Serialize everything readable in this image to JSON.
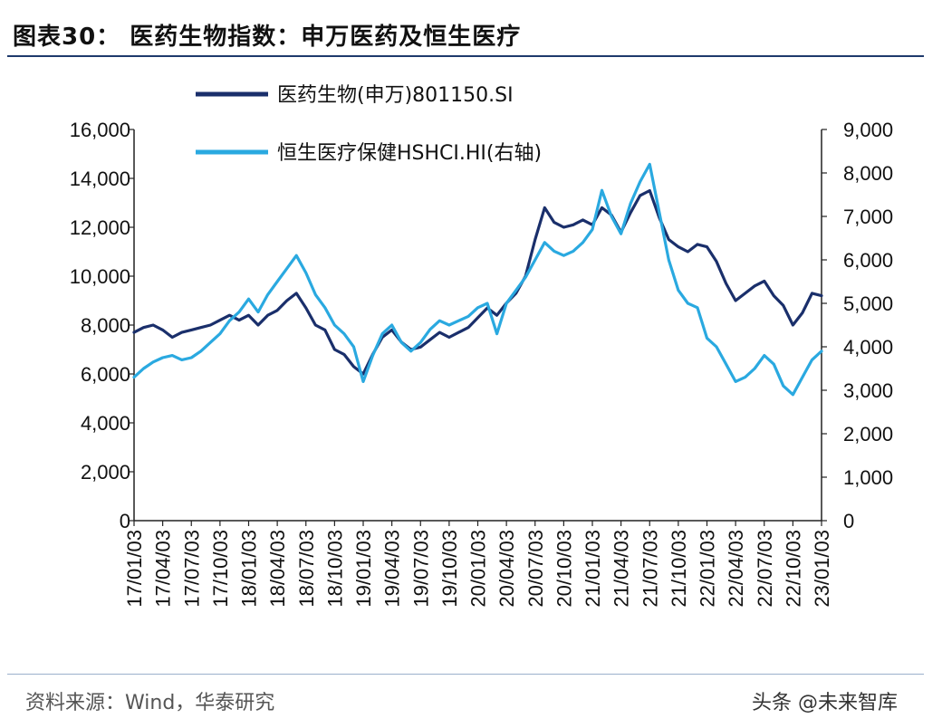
{
  "title": "图表30： 医药生物指数：申万医药及恒生医疗",
  "source": "资料来源：Wind，华泰研究",
  "watermark": "头条 @未来智库",
  "chart_data": {
    "type": "line",
    "grid": false,
    "legend_position": "top-left",
    "y_left": {
      "range": [
        0,
        16000
      ],
      "ticks": [
        "0",
        "2,000",
        "4,000",
        "6,000",
        "8,000",
        "10,000",
        "12,000",
        "14,000",
        "16,000"
      ]
    },
    "y_right": {
      "range": [
        0,
        9000
      ],
      "ticks": [
        "0",
        "1,000",
        "2,000",
        "3,000",
        "4,000",
        "5,000",
        "6,000",
        "7,000",
        "8,000",
        "9,000"
      ]
    },
    "x_ticks": [
      "17/01/03",
      "17/04/03",
      "17/07/03",
      "17/10/03",
      "18/01/03",
      "18/04/03",
      "18/07/03",
      "18/10/03",
      "19/01/03",
      "19/04/03",
      "19/07/03",
      "19/10/03",
      "20/01/03",
      "20/04/03",
      "20/07/03",
      "20/10/03",
      "21/01/03",
      "21/04/03",
      "21/07/03",
      "21/10/03",
      "22/01/03",
      "22/04/03",
      "22/07/03",
      "22/10/03",
      "23/01/03"
    ],
    "series": [
      {
        "name": "医药生物(申万)801150.SI",
        "axis": "left",
        "color": "#1a2f6b",
        "x": [
          "17/01/03",
          "17/02/03",
          "17/03/03",
          "17/04/03",
          "17/05/03",
          "17/06/03",
          "17/07/03",
          "17/08/03",
          "17/09/03",
          "17/10/03",
          "17/11/03",
          "17/12/03",
          "18/01/03",
          "18/02/03",
          "18/03/03",
          "18/04/03",
          "18/05/03",
          "18/06/03",
          "18/07/03",
          "18/08/03",
          "18/09/03",
          "18/10/03",
          "18/11/03",
          "18/12/03",
          "19/01/03",
          "19/02/03",
          "19/03/03",
          "19/04/03",
          "19/05/03",
          "19/06/03",
          "19/07/03",
          "19/08/03",
          "19/09/03",
          "19/10/03",
          "19/11/03",
          "19/12/03",
          "20/01/03",
          "20/02/03",
          "20/03/03",
          "20/04/03",
          "20/05/03",
          "20/06/03",
          "20/07/03",
          "20/08/03",
          "20/09/03",
          "20/10/03",
          "20/11/03",
          "20/12/03",
          "21/01/03",
          "21/02/03",
          "21/03/03",
          "21/04/03",
          "21/05/03",
          "21/06/03",
          "21/07/03",
          "21/08/03",
          "21/09/03",
          "21/10/03",
          "21/11/03",
          "21/12/03",
          "22/01/03",
          "22/02/03",
          "22/03/03",
          "22/04/03",
          "22/05/03",
          "22/06/03",
          "22/07/03",
          "22/08/03",
          "22/09/03",
          "22/10/03",
          "22/11/03",
          "22/12/03",
          "23/01/03"
        ],
        "values": [
          7700,
          7900,
          8000,
          7800,
          7500,
          7700,
          7800,
          7900,
          8000,
          8200,
          8400,
          8200,
          8400,
          8000,
          8400,
          8600,
          9000,
          9300,
          8700,
          8000,
          7800,
          7000,
          6800,
          6300,
          6000,
          6800,
          7500,
          7800,
          7300,
          7000,
          7100,
          7400,
          7700,
          7500,
          7700,
          7900,
          8300,
          8700,
          8400,
          8900,
          9300,
          10000,
          11500,
          12800,
          12200,
          12000,
          12100,
          12300,
          12100,
          12800,
          12500,
          11800,
          12600,
          13300,
          13500,
          12400,
          11500,
          11200,
          11000,
          11300,
          11200,
          10600,
          9700,
          9000,
          9300,
          9600,
          9800,
          9200,
          8800,
          8000,
          8500,
          9300,
          9200
        ]
      },
      {
        "name": "恒生医疗保健HSHCI.HI(右轴)",
        "axis": "right",
        "color": "#2aa9e0",
        "x": [
          "17/01/03",
          "17/02/03",
          "17/03/03",
          "17/04/03",
          "17/05/03",
          "17/06/03",
          "17/07/03",
          "17/08/03",
          "17/09/03",
          "17/10/03",
          "17/11/03",
          "17/12/03",
          "18/01/03",
          "18/02/03",
          "18/03/03",
          "18/04/03",
          "18/05/03",
          "18/06/03",
          "18/07/03",
          "18/08/03",
          "18/09/03",
          "18/10/03",
          "18/11/03",
          "18/12/03",
          "19/01/03",
          "19/02/03",
          "19/03/03",
          "19/04/03",
          "19/05/03",
          "19/06/03",
          "19/07/03",
          "19/08/03",
          "19/09/03",
          "19/10/03",
          "19/11/03",
          "19/12/03",
          "20/01/03",
          "20/02/03",
          "20/03/03",
          "20/04/03",
          "20/05/03",
          "20/06/03",
          "20/07/03",
          "20/08/03",
          "20/09/03",
          "20/10/03",
          "20/11/03",
          "20/12/03",
          "21/01/03",
          "21/02/03",
          "21/03/03",
          "21/04/03",
          "21/05/03",
          "21/06/03",
          "21/07/03",
          "21/08/03",
          "21/09/03",
          "21/10/03",
          "21/11/03",
          "21/12/03",
          "22/01/03",
          "22/02/03",
          "22/03/03",
          "22/04/03",
          "22/05/03",
          "22/06/03",
          "22/07/03",
          "22/08/03",
          "22/09/03",
          "22/10/03",
          "22/11/03",
          "22/12/03",
          "23/01/03"
        ],
        "values": [
          3300,
          3500,
          3650,
          3750,
          3800,
          3700,
          3750,
          3900,
          4100,
          4300,
          4600,
          4800,
          5100,
          4800,
          5200,
          5500,
          5800,
          6100,
          5700,
          5200,
          4900,
          4500,
          4300,
          4000,
          3200,
          3800,
          4300,
          4500,
          4100,
          3900,
          4100,
          4400,
          4600,
          4500,
          4600,
          4700,
          4900,
          5000,
          4300,
          5000,
          5300,
          5600,
          6000,
          6400,
          6200,
          6100,
          6200,
          6400,
          6700,
          7600,
          7000,
          6600,
          7300,
          7800,
          8200,
          7100,
          6000,
          5300,
          5000,
          4900,
          4200,
          4000,
          3600,
          3200,
          3300,
          3500,
          3800,
          3600,
          3100,
          2900,
          3300,
          3700,
          3900
        ]
      }
    ]
  }
}
